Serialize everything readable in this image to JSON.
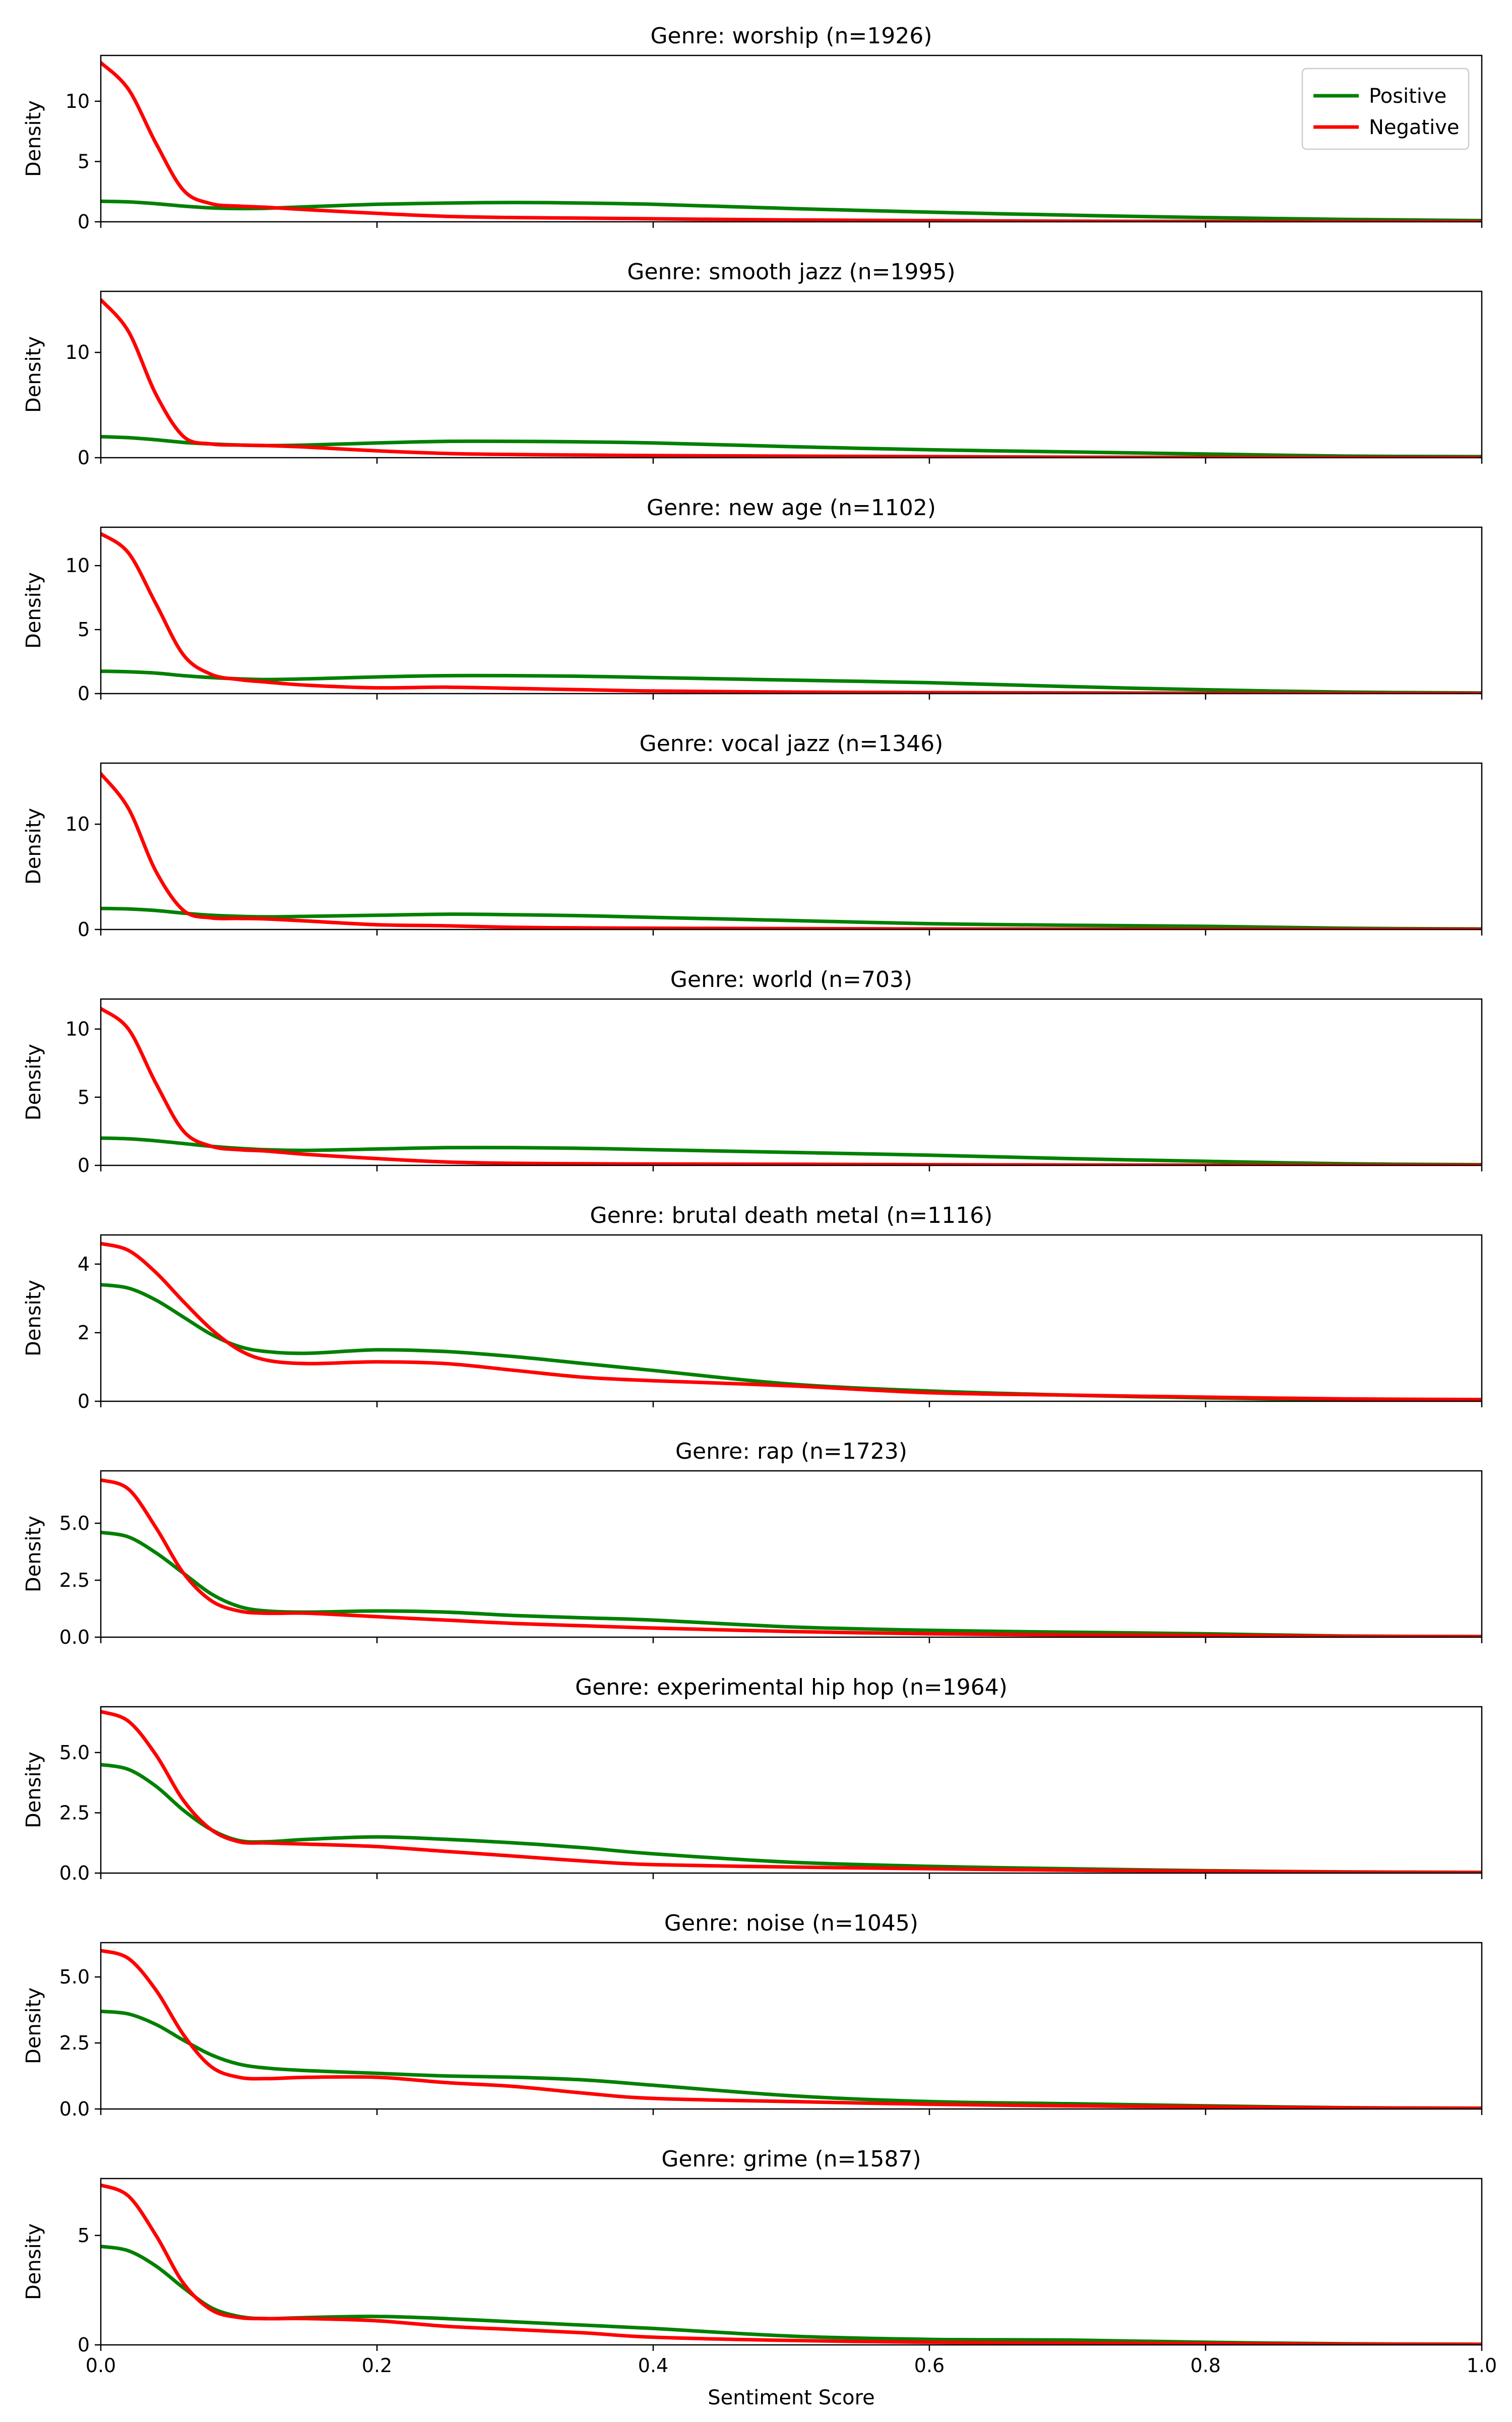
{
  "legend": {
    "placement": "upper-right",
    "entries": [
      {
        "label": "Positive",
        "color": "#008000"
      },
      {
        "label": "Negative",
        "color": "#ff0000"
      }
    ]
  },
  "chart_data": {
    "type": "line",
    "xlabel": "Sentiment Score",
    "ylabel": "Density",
    "xlim": [
      0,
      1
    ],
    "xticks": [
      "0.0",
      "0.2",
      "0.4",
      "0.6",
      "0.8",
      "1.0"
    ],
    "x": [
      0.0,
      0.02,
      0.04,
      0.06,
      0.08,
      0.1,
      0.12,
      0.15,
      0.2,
      0.25,
      0.3,
      0.35,
      0.4,
      0.5,
      0.6,
      0.7,
      0.8,
      0.9,
      1.0
    ],
    "panels": [
      {
        "title": "Genre: worship (n=1926)",
        "ylim": [
          0,
          13.8
        ],
        "yticks": [
          0,
          5,
          10
        ],
        "ytick_labels": [
          "0",
          "5",
          "10"
        ],
        "series": [
          {
            "name": "Positive",
            "color": "#008000",
            "values": [
              1.7,
              1.65,
              1.5,
              1.3,
              1.15,
              1.1,
              1.12,
              1.25,
              1.45,
              1.55,
              1.6,
              1.55,
              1.45,
              1.1,
              0.8,
              0.55,
              0.35,
              0.2,
              0.1
            ]
          },
          {
            "name": "Negative",
            "color": "#ff0000",
            "values": [
              13.2,
              11.0,
              6.5,
              2.6,
              1.5,
              1.3,
              1.2,
              1.0,
              0.7,
              0.45,
              0.35,
              0.3,
              0.25,
              0.15,
              0.1,
              0.05,
              0.03,
              0.02,
              0.01
            ]
          }
        ]
      },
      {
        "title": "Genre: smooth jazz (n=1995)",
        "ylim": [
          0,
          15.8
        ],
        "yticks": [
          0,
          10
        ],
        "ytick_labels": [
          "0",
          "10"
        ],
        "series": [
          {
            "name": "Positive",
            "color": "#008000",
            "values": [
              2.0,
              1.9,
              1.7,
              1.45,
              1.3,
              1.2,
              1.15,
              1.2,
              1.4,
              1.55,
              1.55,
              1.5,
              1.4,
              1.05,
              0.75,
              0.55,
              0.35,
              0.15,
              0.1
            ]
          },
          {
            "name": "Negative",
            "color": "#ff0000",
            "values": [
              15.0,
              12.0,
              6.0,
              2.0,
              1.3,
              1.2,
              1.15,
              1.0,
              0.65,
              0.4,
              0.3,
              0.25,
              0.2,
              0.15,
              0.1,
              0.05,
              0.03,
              0.02,
              0.01
            ]
          }
        ]
      },
      {
        "title": "Genre: new age (n=1102)",
        "ylim": [
          0,
          13.0
        ],
        "yticks": [
          0,
          5,
          10
        ],
        "ytick_labels": [
          "0",
          "5",
          "10"
        ],
        "series": [
          {
            "name": "Positive",
            "color": "#008000",
            "values": [
              1.75,
              1.7,
              1.6,
              1.4,
              1.25,
              1.15,
              1.1,
              1.15,
              1.3,
              1.4,
              1.4,
              1.35,
              1.25,
              1.05,
              0.85,
              0.55,
              0.3,
              0.12,
              0.05
            ]
          },
          {
            "name": "Negative",
            "color": "#ff0000",
            "values": [
              12.5,
              11.0,
              7.0,
              3.0,
              1.5,
              1.1,
              0.9,
              0.65,
              0.45,
              0.5,
              0.4,
              0.3,
              0.2,
              0.12,
              0.08,
              0.05,
              0.03,
              0.02,
              0.01
            ]
          }
        ]
      },
      {
        "title": "Genre: vocal jazz (n=1346)",
        "ylim": [
          0,
          15.8
        ],
        "yticks": [
          0,
          10
        ],
        "ytick_labels": [
          "0",
          "10"
        ],
        "series": [
          {
            "name": "Positive",
            "color": "#008000",
            "values": [
              2.0,
              1.95,
              1.8,
              1.55,
              1.35,
              1.25,
              1.2,
              1.25,
              1.35,
              1.45,
              1.4,
              1.3,
              1.15,
              0.85,
              0.55,
              0.4,
              0.3,
              0.12,
              0.05
            ]
          },
          {
            "name": "Negative",
            "color": "#ff0000",
            "values": [
              14.8,
              11.5,
              5.5,
              1.8,
              1.1,
              1.05,
              1.0,
              0.8,
              0.45,
              0.35,
              0.2,
              0.15,
              0.12,
              0.08,
              0.05,
              0.03,
              0.02,
              0.01,
              0.01
            ]
          }
        ]
      },
      {
        "title": "Genre: world (n=703)",
        "ylim": [
          0,
          12.2
        ],
        "yticks": [
          0,
          5,
          10
        ],
        "ytick_labels": [
          "0",
          "5",
          "10"
        ],
        "series": [
          {
            "name": "Positive",
            "color": "#008000",
            "values": [
              2.0,
              1.95,
              1.8,
              1.6,
              1.4,
              1.25,
              1.15,
              1.1,
              1.2,
              1.3,
              1.3,
              1.25,
              1.15,
              0.95,
              0.75,
              0.5,
              0.3,
              0.12,
              0.05
            ]
          },
          {
            "name": "Negative",
            "color": "#ff0000",
            "values": [
              11.5,
              10.0,
              6.0,
              2.5,
              1.4,
              1.15,
              1.05,
              0.8,
              0.5,
              0.25,
              0.15,
              0.12,
              0.1,
              0.08,
              0.05,
              0.03,
              0.02,
              0.01,
              0.01
            ]
          }
        ]
      },
      {
        "title": "Genre: brutal death metal (n=1116)",
        "ylim": [
          0,
          4.85
        ],
        "yticks": [
          0,
          2,
          4
        ],
        "ytick_labels": [
          "0",
          "2",
          "4"
        ],
        "series": [
          {
            "name": "Positive",
            "color": "#008000",
            "values": [
              3.4,
              3.3,
              2.95,
              2.45,
              1.95,
              1.6,
              1.45,
              1.4,
              1.5,
              1.45,
              1.3,
              1.1,
              0.9,
              0.5,
              0.3,
              0.18,
              0.1,
              0.05,
              0.03
            ]
          },
          {
            "name": "Negative",
            "color": "#ff0000",
            "values": [
              4.6,
              4.4,
              3.75,
              2.9,
              2.1,
              1.5,
              1.2,
              1.1,
              1.15,
              1.1,
              0.9,
              0.7,
              0.6,
              0.45,
              0.25,
              0.18,
              0.12,
              0.07,
              0.05
            ]
          }
        ]
      },
      {
        "title": "Genre: rap (n=1723)",
        "ylim": [
          0,
          7.3
        ],
        "yticks": [
          0,
          2.5,
          5.0
        ],
        "ytick_labels": [
          "0.0",
          "2.5",
          "5.0"
        ],
        "series": [
          {
            "name": "Positive",
            "color": "#008000",
            "values": [
              4.6,
              4.4,
              3.7,
              2.8,
              1.9,
              1.35,
              1.15,
              1.1,
              1.15,
              1.1,
              0.95,
              0.85,
              0.75,
              0.45,
              0.3,
              0.22,
              0.15,
              0.05,
              0.03
            ]
          },
          {
            "name": "Negative",
            "color": "#ff0000",
            "values": [
              6.9,
              6.5,
              4.8,
              2.8,
              1.6,
              1.15,
              1.05,
              1.05,
              0.9,
              0.75,
              0.6,
              0.5,
              0.4,
              0.25,
              0.15,
              0.1,
              0.08,
              0.04,
              0.02
            ]
          }
        ]
      },
      {
        "title": "Genre: experimental hip hop (n=1964)",
        "ylim": [
          0,
          6.9
        ],
        "yticks": [
          0,
          2.5,
          5.0
        ],
        "ytick_labels": [
          "0.0",
          "2.5",
          "5.0"
        ],
        "series": [
          {
            "name": "Positive",
            "color": "#008000",
            "values": [
              4.5,
              4.3,
              3.6,
              2.6,
              1.8,
              1.35,
              1.3,
              1.4,
              1.5,
              1.4,
              1.25,
              1.05,
              0.8,
              0.45,
              0.28,
              0.18,
              0.1,
              0.05,
              0.03
            ]
          },
          {
            "name": "Negative",
            "color": "#ff0000",
            "values": [
              6.7,
              6.3,
              4.9,
              3.0,
              1.8,
              1.3,
              1.25,
              1.2,
              1.1,
              0.9,
              0.7,
              0.5,
              0.35,
              0.25,
              0.18,
              0.12,
              0.08,
              0.04,
              0.02
            ]
          }
        ]
      },
      {
        "title": "Genre: noise (n=1045)",
        "ylim": [
          0,
          6.3
        ],
        "yticks": [
          0,
          2.5,
          5.0
        ],
        "ytick_labels": [
          "0.0",
          "2.5",
          "5.0"
        ],
        "series": [
          {
            "name": "Positive",
            "color": "#008000",
            "values": [
              3.7,
              3.6,
              3.2,
              2.6,
              2.05,
              1.7,
              1.55,
              1.45,
              1.35,
              1.25,
              1.2,
              1.1,
              0.9,
              0.5,
              0.28,
              0.2,
              0.12,
              0.05,
              0.03
            ]
          },
          {
            "name": "Negative",
            "color": "#ff0000",
            "values": [
              6.0,
              5.7,
              4.5,
              2.8,
              1.6,
              1.2,
              1.15,
              1.2,
              1.2,
              1.0,
              0.85,
              0.6,
              0.4,
              0.28,
              0.18,
              0.12,
              0.08,
              0.04,
              0.02
            ]
          }
        ]
      },
      {
        "title": "Genre: grime (n=1587)",
        "ylim": [
          0,
          7.6
        ],
        "yticks": [
          0,
          5
        ],
        "ytick_labels": [
          "0",
          "5"
        ],
        "series": [
          {
            "name": "Positive",
            "color": "#008000",
            "values": [
              4.5,
              4.3,
              3.6,
              2.6,
              1.7,
              1.3,
              1.2,
              1.25,
              1.3,
              1.2,
              1.05,
              0.9,
              0.75,
              0.4,
              0.25,
              0.22,
              0.12,
              0.05,
              0.03
            ]
          },
          {
            "name": "Negative",
            "color": "#ff0000",
            "values": [
              7.3,
              6.8,
              5.0,
              2.8,
              1.6,
              1.25,
              1.2,
              1.2,
              1.1,
              0.85,
              0.7,
              0.55,
              0.35,
              0.2,
              0.12,
              0.08,
              0.06,
              0.03,
              0.02
            ]
          }
        ]
      }
    ]
  }
}
